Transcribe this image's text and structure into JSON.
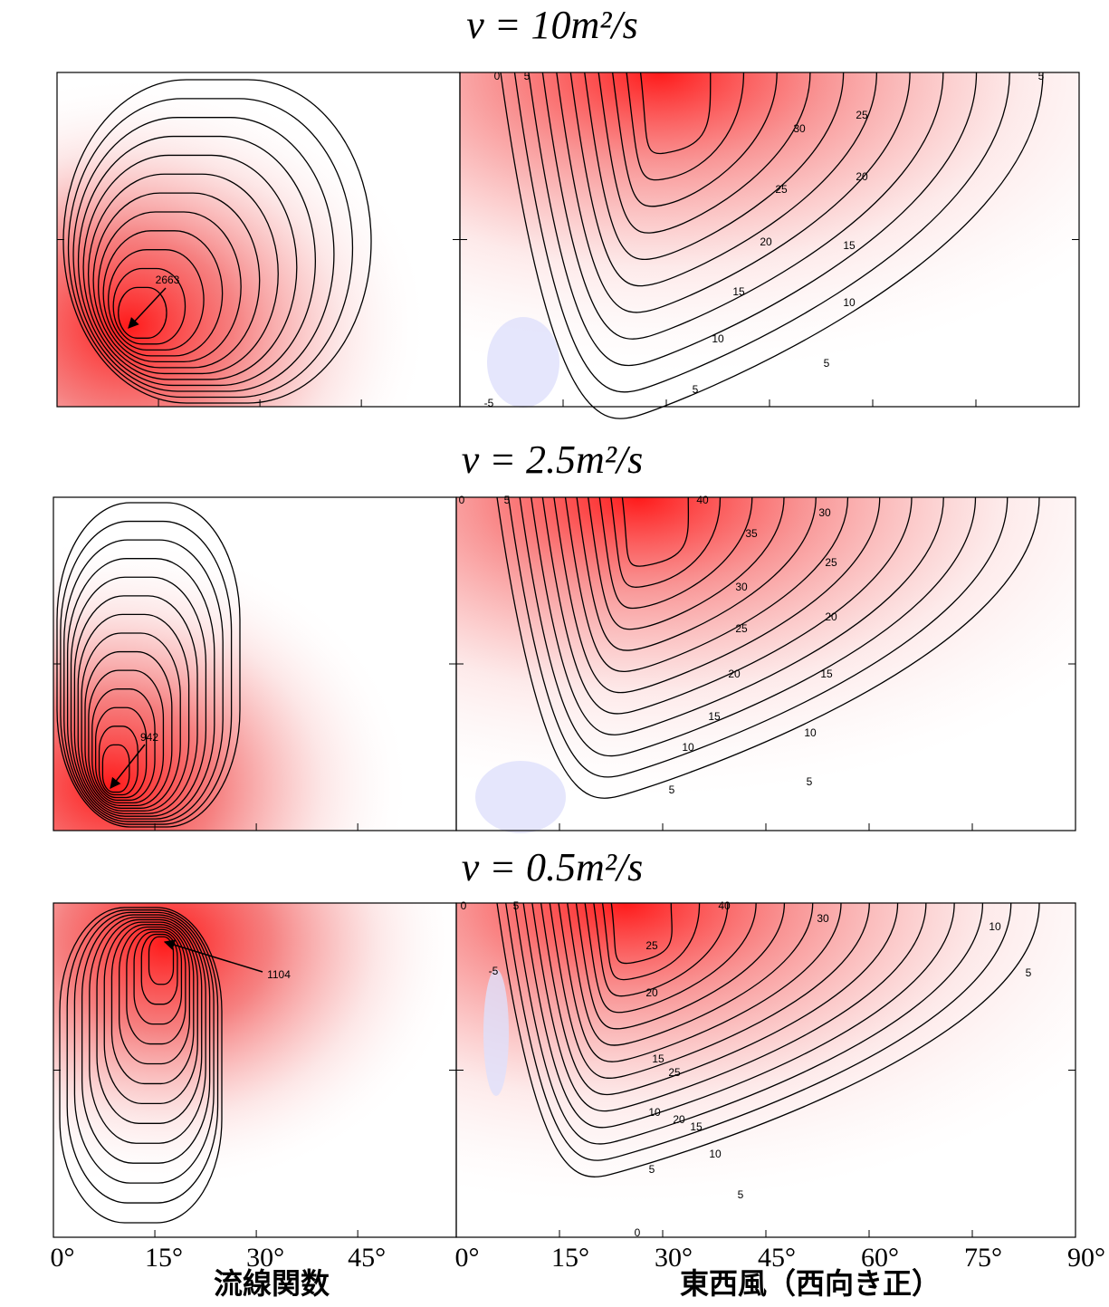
{
  "rows": [
    {
      "title": "ν = 10m²/s",
      "max_label": 2663,
      "contour_labels": [
        0,
        5,
        5,
        30,
        25,
        25,
        20,
        20,
        15,
        15,
        10,
        10,
        5,
        5,
        -5
      ]
    },
    {
      "title": "ν = 2.5m²/s",
      "max_label": 942,
      "contour_labels": [
        0,
        5,
        40,
        30,
        35,
        25,
        30,
        20,
        25,
        15,
        20,
        15,
        10,
        10,
        5,
        5
      ]
    },
    {
      "title": "ν = 0.5m²/s",
      "max_label": 1104,
      "contour_labels": [
        0,
        5,
        40,
        30,
        10,
        5,
        -5,
        25,
        20,
        15,
        25,
        10,
        20,
        15,
        10,
        5,
        5,
        0
      ]
    }
  ],
  "left_xticks": [
    {
      "value": 0,
      "label": "0°"
    },
    {
      "value": 15,
      "label": "15°"
    },
    {
      "value": 30,
      "label": "30°"
    },
    {
      "value": 45,
      "label": "45°"
    }
  ],
  "right_xticks": [
    {
      "value": 0,
      "label": "0°"
    },
    {
      "value": 15,
      "label": "15°"
    },
    {
      "value": 30,
      "label": "30°"
    },
    {
      "value": 45,
      "label": "45°"
    },
    {
      "value": 60,
      "label": "60°"
    },
    {
      "value": 75,
      "label": "75°"
    },
    {
      "value": 90,
      "label": "90°"
    }
  ],
  "left_xlabel": "流線関数",
  "right_xlabel": "東西風（西向き正）"
}
